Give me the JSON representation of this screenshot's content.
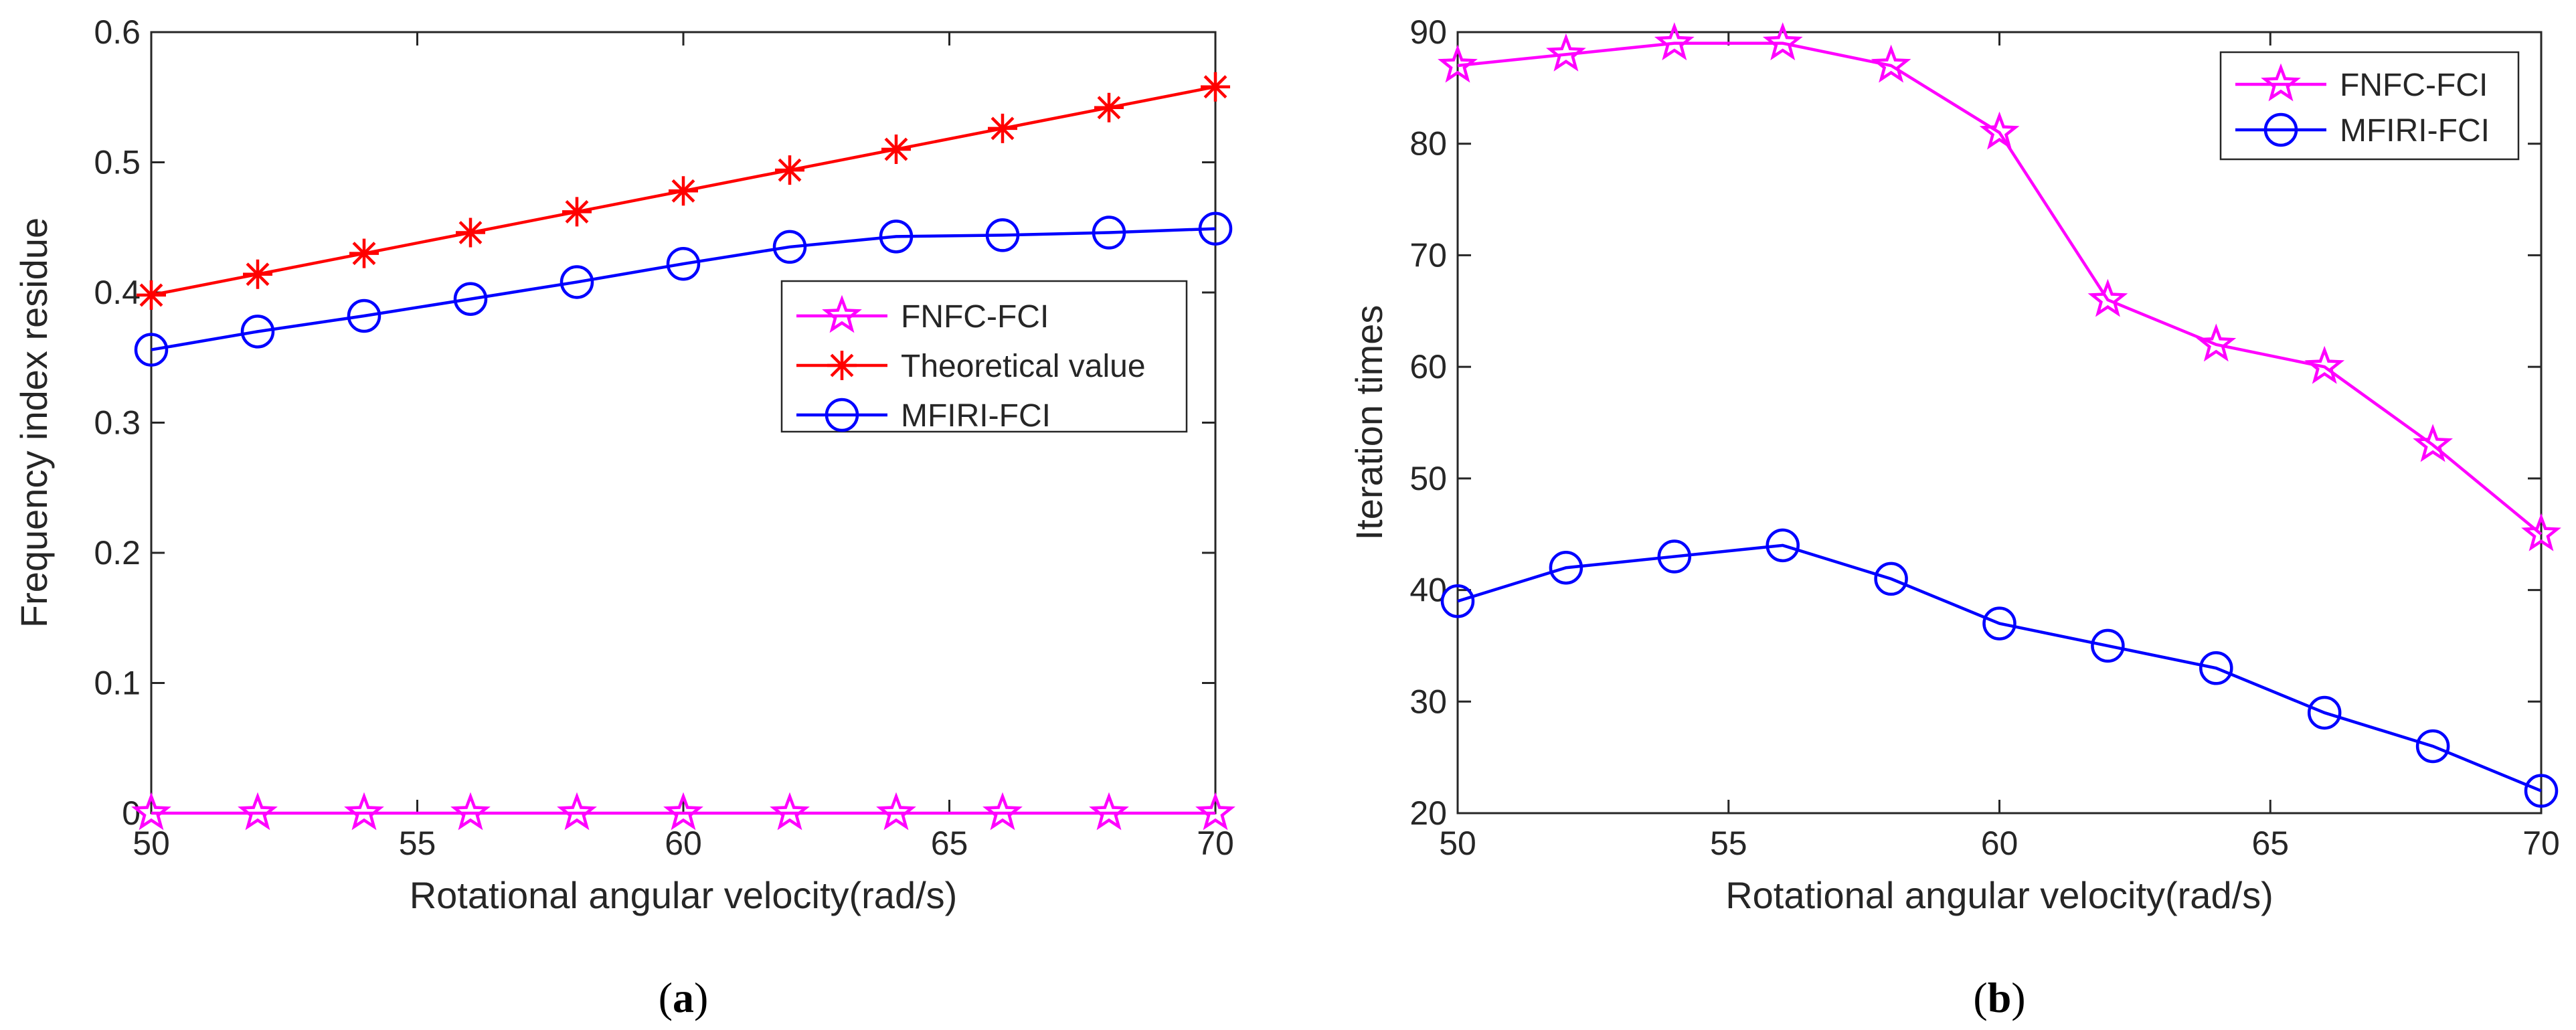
{
  "colors": {
    "magenta": "#ff00ff",
    "red": "#ff0000",
    "blue": "#0000ff",
    "axis": "#262626"
  },
  "chart_data": [
    {
      "type": "line",
      "panel_label": "a",
      "xlabel": "Rotational angular velocity(rad/s)",
      "ylabel": "Frequency index residue",
      "xlim": [
        50,
        70
      ],
      "ylim": [
        0,
        0.6
      ],
      "xticks": [
        50,
        55,
        60,
        65,
        70
      ],
      "xtick_labels": [
        "50",
        "55",
        "60",
        "65",
        "70"
      ],
      "yticks": [
        0,
        0.1,
        0.2,
        0.3,
        0.4,
        0.5,
        0.6
      ],
      "ytick_labels": [
        "0",
        "0.1",
        "0.2",
        "0.3",
        "0.4",
        "0.5",
        "0.6"
      ],
      "legend_position": "center-right",
      "x": [
        50,
        52,
        54,
        56,
        58,
        60,
        62,
        64,
        66,
        68,
        70
      ],
      "series": [
        {
          "name": "FNFC-FCI",
          "marker": "pentagram",
          "color": "#ff00ff",
          "values": [
            0,
            0,
            0,
            0,
            0,
            0,
            0,
            0,
            0,
            0,
            0
          ]
        },
        {
          "name": "Theoretical value",
          "marker": "asterisk",
          "color": "#ff0000",
          "values": [
            0.398,
            0.414,
            0.43,
            0.446,
            0.462,
            0.478,
            0.494,
            0.51,
            0.526,
            0.542,
            0.558
          ]
        },
        {
          "name": "MFIRI-FCI",
          "marker": "circle",
          "color": "#0000ff",
          "values": [
            0.356,
            0.37,
            0.382,
            0.395,
            0.408,
            0.422,
            0.435,
            0.443,
            0.444,
            0.446,
            0.449
          ]
        }
      ]
    },
    {
      "type": "line",
      "panel_label": "b",
      "xlabel": "Rotational angular velocity(rad/s)",
      "ylabel": "Iteration times",
      "xlim": [
        50,
        70
      ],
      "ylim": [
        20,
        90
      ],
      "xticks": [
        50,
        55,
        60,
        65,
        70
      ],
      "xtick_labels": [
        "50",
        "55",
        "60",
        "65",
        "70"
      ],
      "yticks": [
        20,
        30,
        40,
        50,
        60,
        70,
        80,
        90
      ],
      "ytick_labels": [
        "20",
        "30",
        "40",
        "50",
        "60",
        "70",
        "80",
        "90"
      ],
      "legend_position": "top-right",
      "x": [
        50,
        52,
        54,
        56,
        58,
        60,
        62,
        64,
        66,
        68,
        70
      ],
      "series": [
        {
          "name": "FNFC-FCI",
          "marker": "pentagram",
          "color": "#ff00ff",
          "values": [
            87,
            88,
            89,
            89,
            87,
            81,
            66,
            62,
            60,
            53,
            45
          ]
        },
        {
          "name": "MFIRI-FCI",
          "marker": "circle",
          "color": "#0000ff",
          "values": [
            39,
            42,
            43,
            44,
            41,
            37,
            35,
            33,
            29,
            26,
            22
          ]
        }
      ]
    }
  ]
}
